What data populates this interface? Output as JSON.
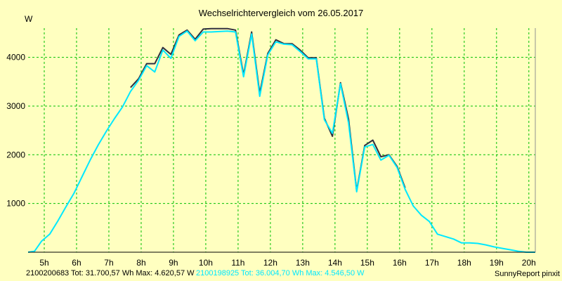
{
  "chart_data": {
    "type": "line",
    "title": "Wechselrichtervergleich vom 26.05.2017",
    "ylabel": "W",
    "xlabel": "",
    "grid": true,
    "xlim": [
      4.5,
      20.2
    ],
    "ylim": [
      0,
      4600
    ],
    "xticks": [
      {
        "v": 5,
        "label": "5h"
      },
      {
        "v": 6,
        "label": "6h"
      },
      {
        "v": 7,
        "label": "7h"
      },
      {
        "v": 8,
        "label": "8h"
      },
      {
        "v": 9,
        "label": "9h"
      },
      {
        "v": 10,
        "label": "10h"
      },
      {
        "v": 11,
        "label": "11h"
      },
      {
        "v": 12,
        "label": "12h"
      },
      {
        "v": 13,
        "label": "13h"
      },
      {
        "v": 14,
        "label": "14h"
      },
      {
        "v": 15,
        "label": "15h"
      },
      {
        "v": 16,
        "label": "16h"
      },
      {
        "v": 17,
        "label": "17h"
      },
      {
        "v": 18,
        "label": "18h"
      },
      {
        "v": 19,
        "label": "19h"
      },
      {
        "v": 20,
        "label": "20h"
      }
    ],
    "yticks": [
      {
        "v": 1000,
        "label": "1000"
      },
      {
        "v": 2000,
        "label": "2000"
      },
      {
        "v": 3000,
        "label": "3000"
      },
      {
        "v": 4000,
        "label": "4000"
      }
    ],
    "series": [
      {
        "name": "2100200683",
        "color": "#303040",
        "points": [
          [
            7.67,
            3380
          ],
          [
            7.92,
            3560
          ],
          [
            8.17,
            3870
          ],
          [
            8.42,
            3870
          ],
          [
            8.67,
            4200
          ],
          [
            8.92,
            4060
          ],
          [
            9.17,
            4460
          ],
          [
            9.42,
            4560
          ],
          [
            9.67,
            4370
          ],
          [
            9.92,
            4580
          ],
          [
            10.17,
            4590
          ],
          [
            10.42,
            4590
          ],
          [
            10.67,
            4590
          ],
          [
            10.92,
            4560
          ],
          [
            11.17,
            3640
          ],
          [
            11.42,
            4520
          ],
          [
            11.67,
            3260
          ],
          [
            11.92,
            4080
          ],
          [
            12.17,
            4360
          ],
          [
            12.42,
            4280
          ],
          [
            12.67,
            4280
          ],
          [
            12.92,
            4150
          ],
          [
            13.17,
            3990
          ],
          [
            13.42,
            3990
          ],
          [
            13.67,
            2750
          ],
          [
            13.92,
            2380
          ],
          [
            14.17,
            3480
          ],
          [
            14.42,
            2730
          ],
          [
            14.67,
            1260
          ],
          [
            14.92,
            2190
          ],
          [
            15.17,
            2300
          ],
          [
            15.42,
            1960
          ],
          [
            15.67,
            2000
          ],
          [
            15.92,
            1760
          ],
          [
            16.17,
            1320
          ]
        ]
      },
      {
        "name": "2100198925",
        "color": "#00e8ff",
        "points": [
          [
            4.5,
            0
          ],
          [
            4.7,
            20
          ],
          [
            4.92,
            230
          ],
          [
            5.17,
            370
          ],
          [
            5.42,
            640
          ],
          [
            5.67,
            930
          ],
          [
            5.92,
            1210
          ],
          [
            6.17,
            1550
          ],
          [
            6.42,
            1890
          ],
          [
            6.67,
            2200
          ],
          [
            6.92,
            2480
          ],
          [
            7.17,
            2740
          ],
          [
            7.42,
            2980
          ],
          [
            7.67,
            3300
          ],
          [
            7.92,
            3530
          ],
          [
            8.17,
            3830
          ],
          [
            8.42,
            3700
          ],
          [
            8.67,
            4150
          ],
          [
            8.92,
            3980
          ],
          [
            9.17,
            4430
          ],
          [
            9.42,
            4540
          ],
          [
            9.67,
            4340
          ],
          [
            9.92,
            4520
          ],
          [
            10.17,
            4520
          ],
          [
            10.42,
            4530
          ],
          [
            10.67,
            4540
          ],
          [
            10.92,
            4520
          ],
          [
            11.17,
            3600
          ],
          [
            11.42,
            4480
          ],
          [
            11.67,
            3200
          ],
          [
            11.92,
            4050
          ],
          [
            12.17,
            4320
          ],
          [
            12.42,
            4270
          ],
          [
            12.67,
            4260
          ],
          [
            12.92,
            4120
          ],
          [
            13.17,
            3970
          ],
          [
            13.42,
            3970
          ],
          [
            13.67,
            2720
          ],
          [
            13.92,
            2440
          ],
          [
            14.17,
            3460
          ],
          [
            14.42,
            2650
          ],
          [
            14.67,
            1240
          ],
          [
            14.92,
            2160
          ],
          [
            15.17,
            2210
          ],
          [
            15.42,
            1890
          ],
          [
            15.67,
            1990
          ],
          [
            15.92,
            1740
          ],
          [
            16.17,
            1290
          ],
          [
            16.42,
            950
          ],
          [
            16.67,
            760
          ],
          [
            16.92,
            630
          ],
          [
            17.17,
            370
          ],
          [
            17.42,
            320
          ],
          [
            17.67,
            270
          ],
          [
            17.92,
            190
          ],
          [
            18.17,
            190
          ],
          [
            18.42,
            180
          ],
          [
            18.67,
            150
          ],
          [
            18.92,
            110
          ],
          [
            19.17,
            80
          ],
          [
            19.42,
            50
          ],
          [
            19.67,
            20
          ],
          [
            19.92,
            0
          ],
          [
            20.2,
            0
          ]
        ]
      }
    ]
  },
  "footer": {
    "series1": "2100200683 Tot: 31.700,57 Wh Max: 4.620,57 W",
    "series2": "2100198925 Tot: 36.004,70 Wh Max: 4.546,50 W",
    "credit": "SunnyReport pinxit"
  },
  "colors": {
    "background": "#ffffc0",
    "grid": "#00c000",
    "series1": "#303040",
    "series2": "#00e8ff"
  }
}
